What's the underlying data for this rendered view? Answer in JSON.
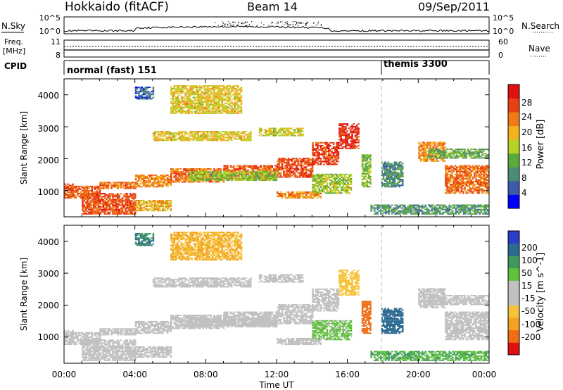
{
  "header": {
    "station": "Hokkaido (fitACF)",
    "beam": "Beam 14",
    "date": "09/Sep/2011"
  },
  "nsky_panel": {
    "left_label": "N.Sky",
    "left_ticks": [
      "10^5",
      "10^0"
    ],
    "right_label": "N.Search",
    "right_ticks": [
      "10^5",
      "10^0"
    ]
  },
  "freq_panel": {
    "left_label_line1": "Freq.",
    "left_label_line2": "[MHz]",
    "left_ticks": [
      "11",
      "8"
    ],
    "right_label": "Nave",
    "right_ticks": [
      "60",
      "0"
    ]
  },
  "cpid_panel": {
    "label": "CPID",
    "modes": [
      {
        "name": "normal (fast) 151",
        "start_hour": 0
      },
      {
        "name": "themis 3300",
        "start_hour": 18
      }
    ]
  },
  "x_axis": {
    "label": "Time UT",
    "ticks": [
      "00:00",
      "04:00",
      "08:00",
      "12:00",
      "16:00",
      "20:00",
      "00:00"
    ],
    "range_hours": [
      0,
      24
    ]
  },
  "power_panel": {
    "ylabel": "Slant Range [km]",
    "yticks": [
      "4000",
      "3000",
      "2000",
      "1000"
    ],
    "colorbar_label": "Power [dB]",
    "colorbar_ticks": [
      "28",
      "24",
      "20",
      "16",
      "12",
      "8",
      "4"
    ]
  },
  "velocity_panel": {
    "ylabel": "Slant Range [km]",
    "yticks": [
      "4000",
      "3000",
      "2000",
      "1000"
    ],
    "colorbar_label": "Velocity [m s^-1]",
    "colorbar_ticks": [
      "200",
      "100",
      "50",
      "15",
      "-15",
      "-50",
      "-100",
      "-200"
    ]
  },
  "chart_data": {
    "type": "heatmap",
    "title": "Hokkaido (fitACF) Beam 14 09/Sep/2011",
    "xlabel": "Time UT",
    "ylabel": "Slant Range [km]",
    "xlim": [
      0,
      24
    ],
    "ylim": [
      180,
      4500
    ],
    "colors": {
      "power_scale": [
        "#0000ff",
        "#3c5aa8",
        "#4b8c78",
        "#5cab3a",
        "#b7d227",
        "#f2b21e",
        "#f07a14",
        "#e84012",
        "#e01010"
      ],
      "velocity_scale": [
        "#e01010",
        "#ee6c14",
        "#f2a21e",
        "#f5c33a",
        "#c0c0c0",
        "#c0c0c0",
        "#5fc23a",
        "#3e9a5a",
        "#2c6a90",
        "#2a3cc8"
      ]
    },
    "bands": [
      {
        "t0": 0.0,
        "t1": 0.5,
        "r0": 1000,
        "r1": 1200,
        "power": 28,
        "velocity": 0
      },
      {
        "t0": 0.0,
        "t1": 2.0,
        "r0": 750,
        "r1": 1150,
        "power": 25,
        "velocity": 0
      },
      {
        "t0": 1.0,
        "t1": 4.0,
        "r0": 250,
        "r1": 900,
        "power": 26,
        "velocity": 0
      },
      {
        "t0": 2.0,
        "t1": 4.0,
        "r0": 1050,
        "r1": 1250,
        "power": 24,
        "velocity": 0
      },
      {
        "t0": 4.0,
        "t1": 6.0,
        "r0": 1100,
        "r1": 1500,
        "power": 22,
        "velocity": 0
      },
      {
        "t0": 4.0,
        "t1": 6.0,
        "r0": 350,
        "r1": 700,
        "power": 20,
        "velocity": 0
      },
      {
        "t0": 6.0,
        "t1": 9.0,
        "r0": 1250,
        "r1": 1700,
        "power": 24,
        "velocity": 0
      },
      {
        "t0": 9.0,
        "t1": 12.0,
        "r0": 1350,
        "r1": 1800,
        "power": 25,
        "velocity": 0
      },
      {
        "t0": 12.0,
        "t1": 14.0,
        "r0": 1400,
        "r1": 2000,
        "power": 26,
        "velocity": 0
      },
      {
        "t0": 14.0,
        "t1": 15.5,
        "r0": 1800,
        "r1": 2500,
        "power": 27,
        "velocity": 0
      },
      {
        "t0": 15.5,
        "t1": 16.6,
        "r0": 2300,
        "r1": 3100,
        "power": 28,
        "velocity": -30
      },
      {
        "t0": 5.0,
        "t1": 10.5,
        "r0": 2550,
        "r1": 2850,
        "power": 18,
        "velocity": 0
      },
      {
        "t0": 11.0,
        "t1": 13.5,
        "r0": 2700,
        "r1": 2950,
        "power": 17,
        "velocity": 0
      },
      {
        "t0": 7.0,
        "t1": 12.0,
        "r0": 1300,
        "r1": 1600,
        "power": 14,
        "velocity": 0
      },
      {
        "t0": 12.0,
        "t1": 14.5,
        "r0": 750,
        "r1": 950,
        "power": 22,
        "velocity": 0
      },
      {
        "t0": 14.0,
        "t1": 16.2,
        "r0": 900,
        "r1": 1500,
        "power": 15,
        "velocity": 20
      },
      {
        "t0": 16.8,
        "t1": 17.3,
        "r0": 1100,
        "r1": 2100,
        "power": 14,
        "velocity": -150
      },
      {
        "t0": 17.9,
        "t1": 19.1,
        "r0": 1100,
        "r1": 1900,
        "power": 9,
        "velocity": 120
      },
      {
        "t0": 17.3,
        "t1": 24.0,
        "r0": 250,
        "r1": 550,
        "power": 10,
        "velocity": 50
      },
      {
        "t0": 20.0,
        "t1": 21.5,
        "r0": 1900,
        "r1": 2500,
        "power": 22,
        "velocity": 0
      },
      {
        "t0": 21.5,
        "t1": 24.0,
        "r0": 900,
        "r1": 1800,
        "power": 24,
        "velocity": 0
      },
      {
        "t0": 20.5,
        "t1": 24.0,
        "r0": 2000,
        "r1": 2300,
        "power": 12,
        "velocity": 0
      },
      {
        "t0": 6.0,
        "t1": 10.0,
        "r0": 3400,
        "r1": 4300,
        "power": 18,
        "velocity": -50
      },
      {
        "t0": 4.0,
        "t1": 5.0,
        "r0": 3850,
        "r1": 4250,
        "power": 6,
        "velocity": 100
      }
    ]
  }
}
